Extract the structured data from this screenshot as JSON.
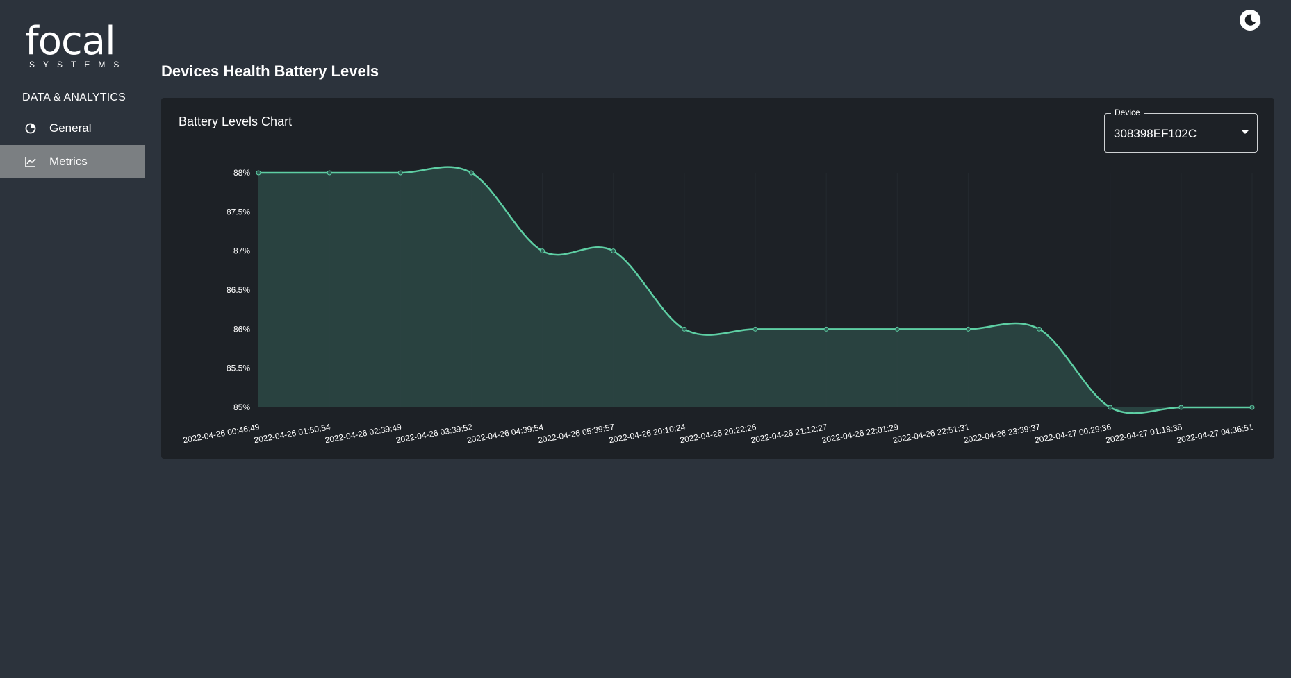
{
  "brand": {
    "name": "focal",
    "tagline": "SYSTEMS"
  },
  "sidebar": {
    "heading": "DATA & ANALYTICS",
    "items": [
      {
        "label": "General",
        "icon": "pie-chart-icon",
        "active": false
      },
      {
        "label": "Metrics",
        "icon": "line-chart-icon",
        "active": true
      }
    ]
  },
  "header": {
    "theme_toggle_icon": "moon-icon"
  },
  "page": {
    "title": "Devices Health Battery Levels"
  },
  "card": {
    "title": "Battery Levels Chart",
    "device_select": {
      "label": "Device",
      "value": "308398EF102C"
    }
  },
  "colors": {
    "line": "#5ecfa4",
    "area": "#2b4644",
    "card_bg": "#1d2126",
    "page_bg": "#2c333c",
    "active_nav": "#7b7f82"
  },
  "chart_data": {
    "type": "area",
    "x": [
      "2022-04-26 00:46:49",
      "2022-04-26 01:50:54",
      "2022-04-26 02:39:49",
      "2022-04-26 03:39:52",
      "2022-04-26 04:39:54",
      "2022-04-26 05:39:57",
      "2022-04-26 20:10:24",
      "2022-04-26 20:22:26",
      "2022-04-26 21:12:27",
      "2022-04-26 22:01:29",
      "2022-04-26 22:51:31",
      "2022-04-26 23:39:37",
      "2022-04-27 00:29:36",
      "2022-04-27 01:18:38",
      "2022-04-27 04:36:51"
    ],
    "series": [
      {
        "values": [
          88,
          88,
          88,
          88,
          87,
          87,
          86,
          86,
          86,
          86,
          86,
          86,
          85,
          85,
          85
        ]
      }
    ],
    "yticks": [
      "85%",
      "85.5%",
      "86%",
      "86.5%",
      "87%",
      "87.5%",
      "88%"
    ],
    "ylim": [
      85,
      88
    ],
    "grid": true,
    "curve": "smooth"
  }
}
